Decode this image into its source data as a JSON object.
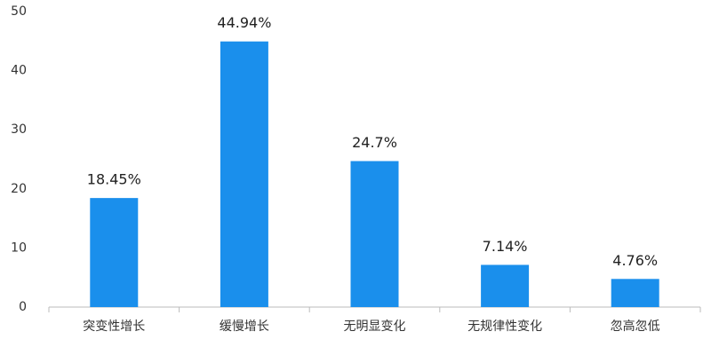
{
  "chart_data": {
    "type": "bar",
    "categories": [
      "突变性增长",
      "缓慢增长",
      "无明显变化",
      "无规律性变化",
      "忽高忽低"
    ],
    "values": [
      18.45,
      44.94,
      24.7,
      7.14,
      4.76
    ],
    "value_labels": [
      "18.45%",
      "44.94%",
      "24.7%",
      "7.14%",
      "4.76%"
    ],
    "color": "#1a8fec",
    "ylim": [
      0,
      50
    ],
    "yticks": [
      0,
      10,
      20,
      30,
      40,
      50
    ],
    "grid": false
  }
}
